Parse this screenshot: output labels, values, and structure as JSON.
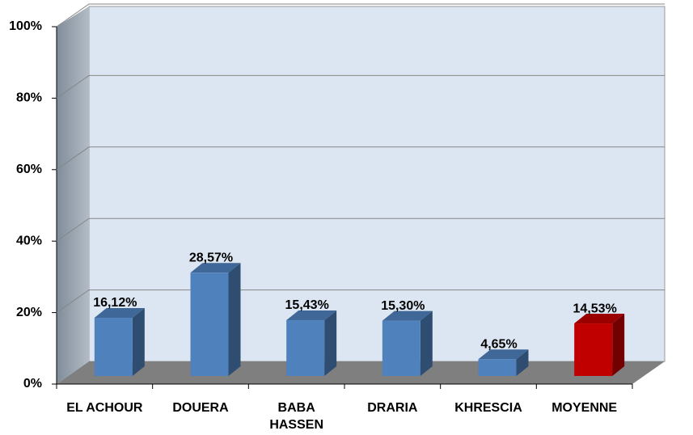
{
  "chart_data": {
    "type": "bar3d",
    "categories": [
      "EL ACHOUR",
      "DOUERA",
      "BABA HASSEN",
      "DRARIA",
      "KHRESCIA",
      "MOYENNE"
    ],
    "values": [
      16.12,
      28.57,
      15.43,
      15.3,
      4.65,
      14.53
    ],
    "value_labels": [
      "16,12%",
      "28,57%",
      "15,43%",
      "15,30%",
      "4,65%",
      "14,53%"
    ],
    "colors": [
      "#4f81bd",
      "#4f81bd",
      "#4f81bd",
      "#4f81bd",
      "#4f81bd",
      "#c00000"
    ],
    "ylim": [
      0,
      100
    ],
    "yticks": [
      {
        "value": 0,
        "label": "0%"
      },
      {
        "value": 20,
        "label": "20%"
      },
      {
        "value": 40,
        "label": "40%"
      },
      {
        "value": 60,
        "label": "60%"
      },
      {
        "value": 80,
        "label": "80%"
      },
      {
        "value": 100,
        "label": "100%"
      }
    ],
    "grid": true
  }
}
